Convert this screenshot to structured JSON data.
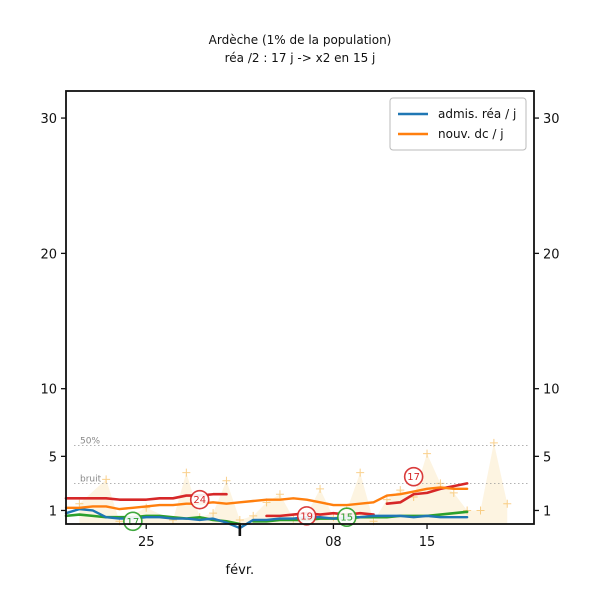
{
  "chart_data": {
    "type": "line",
    "title": "Ardèche (1% de la population)",
    "subtitle": "réa /2 : 17 j -> x2 en 15 j",
    "ylim": [
      0,
      32
    ],
    "yticks": [
      1,
      5,
      10,
      20,
      30
    ],
    "x_tick_labels": [
      "25",
      "08",
      "15"
    ],
    "x_tick_days": [
      5,
      19,
      26
    ],
    "month_label": "févr.",
    "month_marker_day": 12,
    "xlim": [
      -1,
      34
    ],
    "thresholds": [
      {
        "label": "50%",
        "value": 5.8
      },
      {
        "label": "bruit",
        "value": 3.0
      }
    ],
    "legend": {
      "placement": "top-right",
      "entries": [
        {
          "label": "admis. réa / j",
          "color": "#1f77b4"
        },
        {
          "label": "nouv. dc / j",
          "color": "#ff7f0e"
        }
      ]
    },
    "series": [
      {
        "name": "admis. réa / j",
        "color": "#1f77b4",
        "x": [
          -1,
          0,
          1,
          2,
          3,
          4,
          5,
          6,
          7,
          8,
          9,
          10,
          11,
          12,
          13,
          14,
          15,
          16,
          17,
          18,
          19,
          20,
          21,
          22,
          23,
          24,
          25,
          26,
          27,
          28,
          29
        ],
        "y": [
          0.8,
          1.1,
          1.0,
          0.5,
          0.4,
          0.4,
          0.5,
          0.5,
          0.4,
          0.4,
          0.3,
          0.4,
          0.1,
          -0.3,
          0.3,
          0.3,
          0.4,
          0.4,
          0.5,
          0.5,
          0.4,
          0.5,
          0.5,
          0.6,
          0.6,
          0.6,
          0.5,
          0.6,
          0.5,
          0.5,
          0.5
        ]
      },
      {
        "name": "nouv. dc / j",
        "color": "#ff7f0e",
        "x": [
          -1,
          0,
          1,
          2,
          3,
          4,
          5,
          6,
          7,
          8,
          9,
          10,
          11,
          12,
          13,
          14,
          15,
          16,
          17,
          18,
          19,
          20,
          21,
          22,
          23,
          24,
          25,
          26,
          27,
          28,
          29
        ],
        "y": [
          1.2,
          1.2,
          1.3,
          1.3,
          1.1,
          1.2,
          1.3,
          1.4,
          1.4,
          1.5,
          1.5,
          1.6,
          1.5,
          1.6,
          1.7,
          1.8,
          1.8,
          1.9,
          1.8,
          1.6,
          1.4,
          1.4,
          1.5,
          1.6,
          2.1,
          2.2,
          2.4,
          2.6,
          2.7,
          2.6,
          2.6
        ]
      }
    ],
    "extra_lines": [
      {
        "color": "#d62728",
        "segments": [
          {
            "x": [
              -1,
              0,
              1,
              2,
              3,
              4,
              5,
              6,
              7,
              8,
              9,
              10,
              11
            ],
            "y": [
              1.9,
              1.9,
              1.9,
              1.9,
              1.8,
              1.8,
              1.8,
              1.9,
              1.9,
              2.1,
              2.1,
              2.2,
              2.2
            ]
          },
          {
            "x": [
              14,
              15,
              16,
              17,
              18,
              19,
              20,
              21,
              22
            ],
            "y": [
              0.6,
              0.6,
              0.7,
              0.8,
              0.7,
              0.8,
              0.7,
              0.8,
              0.7
            ]
          },
          {
            "x": [
              23,
              24,
              25,
              26,
              27,
              28,
              29
            ],
            "y": [
              1.5,
              1.6,
              2.2,
              2.3,
              2.6,
              2.8,
              3.0
            ]
          }
        ]
      },
      {
        "color": "#2ca02c",
        "segments": [
          {
            "x": [
              -1,
              0,
              1,
              2,
              3,
              4,
              5,
              6,
              7,
              8,
              9,
              10,
              11,
              12
            ],
            "y": [
              0.6,
              0.7,
              0.6,
              0.5,
              0.5,
              0.5,
              0.6,
              0.6,
              0.5,
              0.4,
              0.5,
              0.3,
              0.2,
              0.0
            ]
          },
          {
            "x": [
              13,
              14,
              15,
              16,
              17,
              18,
              19,
              20,
              21,
              22,
              23,
              24,
              25,
              26,
              27,
              28,
              29
            ],
            "y": [
              0.2,
              0.2,
              0.3,
              0.3,
              0.3,
              0.4,
              0.4,
              0.4,
              0.5,
              0.5,
              0.5,
              0.6,
              0.6,
              0.6,
              0.7,
              0.8,
              0.9
            ]
          }
        ]
      }
    ],
    "background_points": {
      "color": "#f5b041",
      "x": [
        0,
        2,
        3,
        5,
        7,
        8,
        9,
        10,
        11,
        12,
        13,
        14,
        15,
        16,
        17,
        18,
        19,
        20,
        21,
        22,
        23,
        24,
        25,
        26,
        27,
        28,
        29,
        30,
        31,
        32
      ],
      "y": [
        1.5,
        3.3,
        0.2,
        1.2,
        0.3,
        3.8,
        0.5,
        0.8,
        3.2,
        0.3,
        0.6,
        1.6,
        2.2,
        0.4,
        0.7,
        2.6,
        0.5,
        1.0,
        3.8,
        0.2,
        1.8,
        2.5,
        2.0,
        5.2,
        3.0,
        2.3,
        1.0,
        1.0,
        6.0,
        1.5
      ]
    },
    "badges": [
      {
        "text": "17",
        "x": 4,
        "y": 0.2,
        "color": "#2ca02c"
      },
      {
        "text": "24",
        "x": 9,
        "y": 1.8,
        "color": "#d62728"
      },
      {
        "text": "19",
        "x": 17,
        "y": 0.6,
        "color": "#d62728"
      },
      {
        "text": "15",
        "x": 20,
        "y": 0.5,
        "color": "#2ca02c"
      },
      {
        "text": "17",
        "x": 25,
        "y": 3.5,
        "color": "#d62728"
      }
    ]
  }
}
